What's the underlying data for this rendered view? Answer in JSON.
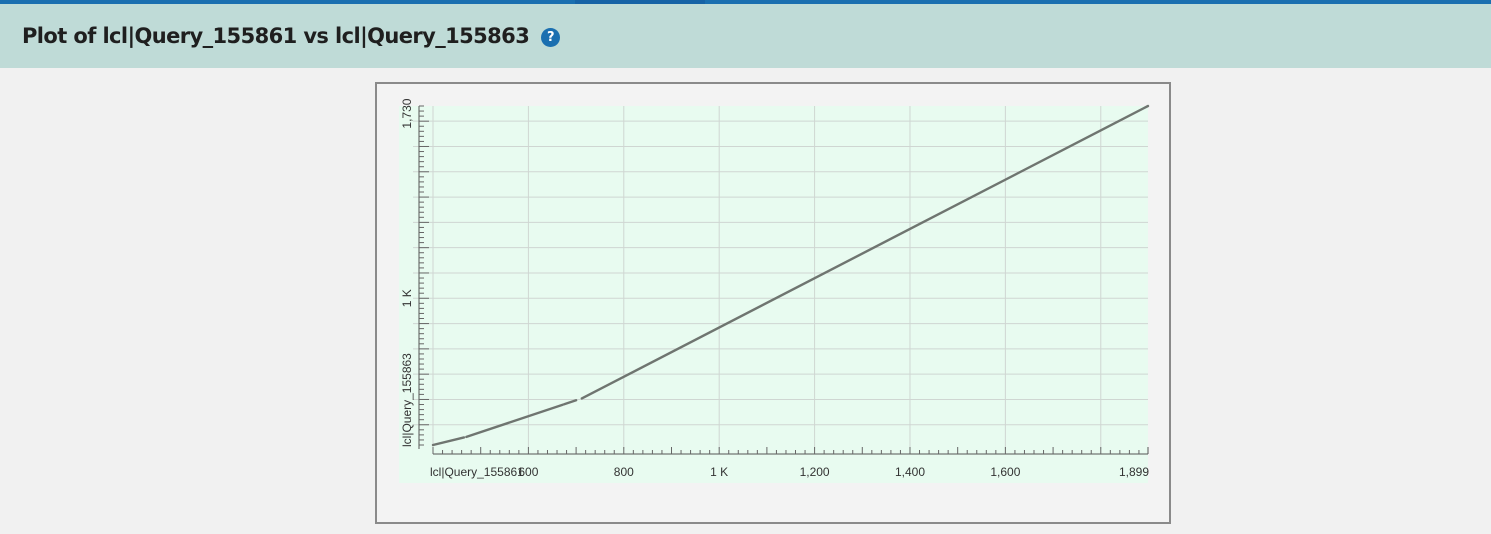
{
  "header": {
    "title": "Plot of lcl|Query_155861 vs lcl|Query_155863",
    "help_icon": "question-circle-icon"
  },
  "colors": {
    "header_bg": "#bfdbd7",
    "plot_bg": "#e8fbf0",
    "line": "#6f7570",
    "accent": "#1a6fb0"
  },
  "chart_data": {
    "type": "line",
    "title": "",
    "xlabel": "lcl|Query_155861",
    "ylabel": "lcl|Query_155863",
    "xlim": [
      400,
      1899
    ],
    "ylim": [
      420,
      1760
    ],
    "x_tick_labels": [
      {
        "value": 600,
        "label": "600"
      },
      {
        "value": 800,
        "label": "800"
      },
      {
        "value": 1000,
        "label": "1 K"
      },
      {
        "value": 1200,
        "label": "1,200"
      },
      {
        "value": 1400,
        "label": "1,400"
      },
      {
        "value": 1600,
        "label": "1,600"
      },
      {
        "value": 1899,
        "label": "1,899"
      }
    ],
    "y_tick_labels": [
      {
        "value": 1000,
        "label": "1 K"
      },
      {
        "value": 1730,
        "label": "1,730"
      }
    ],
    "x_gridlines": [
      400,
      600,
      800,
      1000,
      1200,
      1400,
      1600,
      1800
    ],
    "y_gridlines": [
      500,
      600,
      700,
      800,
      900,
      1000,
      1100,
      1200,
      1300,
      1400,
      1500,
      1600,
      1700
    ],
    "grid": true,
    "series": [
      {
        "segments": [
          [
            [
              400,
              420
            ],
            [
              465,
              450
            ]
          ],
          [
            [
              470,
              452
            ],
            [
              672,
              579
            ]
          ],
          [
            [
              675,
              581
            ],
            [
              700,
              597
            ]
          ],
          [
            [
              712,
              604
            ],
            [
              1899,
              1760
            ]
          ]
        ]
      }
    ]
  }
}
